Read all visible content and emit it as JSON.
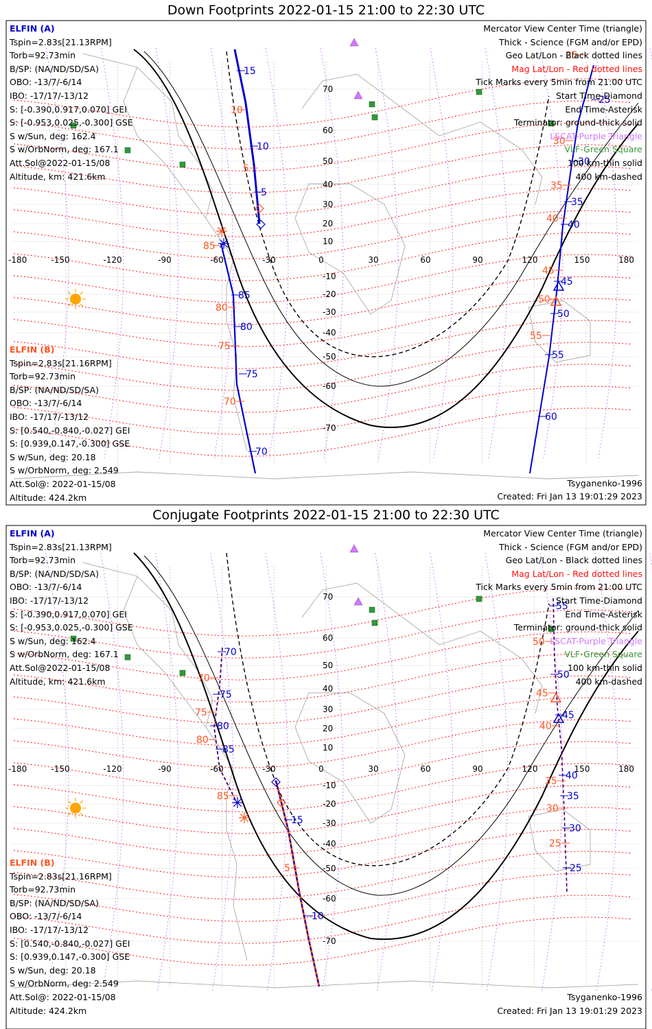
{
  "panels": [
    {
      "title": "Down Footprints 2022-01-15 21:00 to 22:30 UTC",
      "elfin_a": {
        "label": "ELFIN (A)",
        "lines": [
          "Tspin=2.83s[21.13RPM]",
          "Torb=92.73min",
          "B/SP: (NA/ND/SD/SA)",
          "OBO: -13/7/-6/14",
          "IBO: -17/17/-13/12",
          "S: [-0.390,0.917,0.070] GEI",
          "S: [-0.953,0.025,-0.300] GSE",
          "S w/Sun, deg: 162.4",
          "S w/OrbNorm, deg: 167.1",
          "Att.Sol@2022-01-15/08",
          "Altitude, km: 421.6km"
        ]
      },
      "elfin_b": {
        "label": "ELFIN (B)",
        "lines": [
          "Tspin=2.83s[21.16RPM]",
          "Torb=92.73min",
          "B/SP: (NA/ND/SD/SA)",
          "OBO: -13/7/-6/14",
          "IBO: -17/17/-13/12",
          "S: [0.540,-0.840,-0.027] GEI",
          "S: [0.939,0.147,-0.300] GSE",
          "S w/Sun, deg: 20.18",
          "S w/OrbNorm, deg: 2.549",
          "Att.Sol@: 2022-01-15/08",
          "Altitude: 424.2km"
        ]
      },
      "model": "Tsyganenko-1996",
      "created": "Created: Fri Jan 13 19:01:29 2023",
      "a_ticks": [
        "15",
        "10",
        "5",
        "85",
        "80",
        "75",
        "70",
        "25",
        "30",
        "35",
        "40",
        "45",
        "50",
        "55",
        "60"
      ],
      "b_ticks": [
        "10",
        "5",
        "85",
        "80",
        "75",
        "70",
        "25",
        "30",
        "35",
        "40",
        "45",
        "50",
        "55"
      ]
    },
    {
      "title": "Conjugate Footprints 2022-01-15 21:00 to 22:30 UTC",
      "elfin_a": {
        "label": "ELFIN (A)",
        "lines": [
          "Tspin=2.83s[21.13RPM]",
          "Torb=92.73min",
          "B/SP: (NA/ND/SD/SA)",
          "OBO: -13/7/-6/14",
          "IBO: -17/17/-13/12",
          "S: [-0.390,0.917,0.070] GEI",
          "S: [-0.953,0.025,-0.300] GSE",
          "S w/Sun, deg: 162.4",
          "S w/OrbNorm, deg: 167.1",
          "Att.Sol@2022-01-15/08",
          "Altitude, km: 421.6km"
        ]
      },
      "elfin_b": {
        "label": "ELFIN (B)",
        "lines": [
          "Tspin=2.83s[21.16RPM]",
          "Torb=92.73min",
          "B/SP: (NA/ND/SD/SA)",
          "OBO: -13/7/-6/14",
          "IBO: -17/17/-13/12",
          "S: [0.540,-0.840,-0.027] GEI",
          "S: [0.939,0.147,-0.300] GSE",
          "S w/Sun, deg: 20.18",
          "S w/OrbNorm, deg: 2.549",
          "Att.Sol@: 2022-01-15/08",
          "Altitude: 424.2km"
        ]
      },
      "model": "Tsyganenko-1996",
      "created": "Created: Fri Jan 13 19:01:29 2023",
      "a_ticks": [
        "70",
        "75",
        "80",
        "85",
        "15",
        "10",
        "55",
        "50",
        "45",
        "40",
        "35",
        "30",
        "25"
      ],
      "b_ticks": [
        "70",
        "75",
        "80",
        "85",
        "5",
        "50",
        "45",
        "40",
        "35",
        "30",
        "25"
      ]
    }
  ],
  "legend": {
    "l1": "Mercator View Center Time (triangle)",
    "l2": "Thick - Science (FGM and/or EPD)",
    "l3": "Geo Lat/Lon - Black dotted lines",
    "l4": "Mag Lat/Lon - Red dotted lines",
    "l5": "Tick Marks every 5min from 21:00 UTC",
    "l6": "Start Time-Diamond",
    "l7": "End Time-Asterisk",
    "l8": "Terminator: ground-thick solid",
    "l9": "LSCAT-Purple Triangle",
    "l10": "VLF-Green Square",
    "l11": "100 km-thin solid",
    "l12": "400 km-dashed"
  },
  "lon_ticks": [
    "-180",
    "-150",
    "-120",
    "-90",
    "-60",
    "-30",
    "0",
    "30",
    "60",
    "90",
    "120",
    "150",
    "180"
  ],
  "lat_ticks": [
    "70",
    "60",
    "50",
    "40",
    "30",
    "20",
    "10",
    "-10",
    "-20",
    "-30",
    "-40",
    "-50",
    "-60",
    "-70"
  ],
  "colors": {
    "elfin_a": "#0000cc",
    "elfin_b": "#ff5522",
    "mag_grid": "#ff0000",
    "geo_grid": "#d277ff",
    "vlf": "#2f9a3a",
    "lscat": "#d277ff",
    "sun": "#ffa500"
  }
}
